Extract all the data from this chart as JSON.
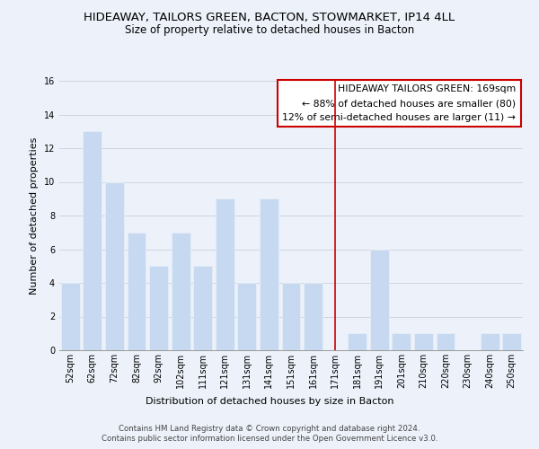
{
  "title": "HIDEAWAY, TAILORS GREEN, BACTON, STOWMARKET, IP14 4LL",
  "subtitle": "Size of property relative to detached houses in Bacton",
  "xlabel": "Distribution of detached houses by size in Bacton",
  "ylabel": "Number of detached properties",
  "categories": [
    "52sqm",
    "62sqm",
    "72sqm",
    "82sqm",
    "92sqm",
    "102sqm",
    "111sqm",
    "121sqm",
    "131sqm",
    "141sqm",
    "151sqm",
    "161sqm",
    "171sqm",
    "181sqm",
    "191sqm",
    "201sqm",
    "210sqm",
    "220sqm",
    "230sqm",
    "240sqm",
    "250sqm"
  ],
  "values": [
    4,
    13,
    10,
    7,
    5,
    7,
    5,
    9,
    4,
    9,
    4,
    4,
    0,
    1,
    6,
    1,
    1,
    1,
    0,
    1,
    1
  ],
  "bar_color": "#c7d9f0",
  "bar_edge_color": "#e8eef8",
  "grid_color": "#c8d0da",
  "vline_x": 12.0,
  "vline_color": "#cc0000",
  "annotation_lines": [
    "HIDEAWAY TAILORS GREEN: 169sqm",
    "← 88% of detached houses are smaller (80)",
    "12% of semi-detached houses are larger (11) →"
  ],
  "ylim": [
    0,
    16
  ],
  "yticks": [
    0,
    2,
    4,
    6,
    8,
    10,
    12,
    14,
    16
  ],
  "footer_line1": "Contains HM Land Registry data © Crown copyright and database right 2024.",
  "footer_line2": "Contains public sector information licensed under the Open Government Licence v3.0.",
  "bg_color": "#edf2fa",
  "plot_bg_color": "#edf2fa",
  "title_fontsize": 9.5,
  "subtitle_fontsize": 8.5,
  "axis_label_fontsize": 8,
  "tick_fontsize": 7,
  "footer_fontsize": 6.2,
  "annotation_fontsize": 7.8
}
